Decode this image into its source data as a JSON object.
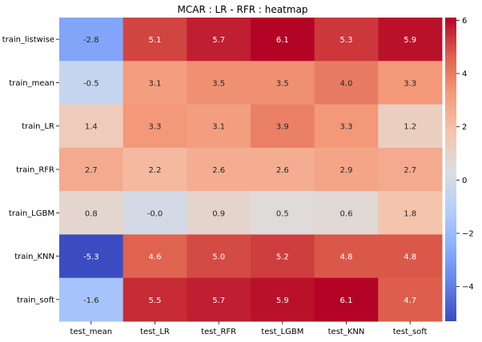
{
  "chart_data": {
    "type": "heatmap",
    "title": "MCAR : LR - RFR : heatmap",
    "xlabel": "",
    "ylabel": "",
    "columns": [
      "test_mean",
      "test_LR",
      "test_RFR",
      "test_LGBM",
      "test_KNN",
      "test_soft"
    ],
    "rows": [
      "train_listwise",
      "train_mean",
      "train_LR",
      "train_RFR",
      "train_LGBM",
      "train_KNN",
      "train_soft"
    ],
    "values": [
      [
        -2.8,
        5.1,
        5.7,
        6.1,
        5.3,
        5.9
      ],
      [
        -0.5,
        3.1,
        3.5,
        3.5,
        4.0,
        3.3
      ],
      [
        1.4,
        3.3,
        3.1,
        3.9,
        3.3,
        1.2
      ],
      [
        2.7,
        2.2,
        2.6,
        2.6,
        2.9,
        2.7
      ],
      [
        0.8,
        -0.0,
        0.9,
        0.5,
        0.6,
        1.8
      ],
      [
        -5.3,
        4.6,
        5.0,
        5.2,
        4.8,
        4.8
      ],
      [
        -1.6,
        5.5,
        5.7,
        5.9,
        6.1,
        4.7
      ]
    ],
    "cell_labels": [
      [
        "-2.8",
        "5.1",
        "5.7",
        "6.1",
        "5.3",
        "5.9"
      ],
      [
        "-0.5",
        "3.1",
        "3.5",
        "3.5",
        "4.0",
        "3.3"
      ],
      [
        "1.4",
        "3.3",
        "3.1",
        "3.9",
        "3.3",
        "1.2"
      ],
      [
        "2.7",
        "2.2",
        "2.6",
        "2.6",
        "2.9",
        "2.7"
      ],
      [
        "0.8",
        "-0.0",
        "0.9",
        "0.5",
        "0.6",
        "1.8"
      ],
      [
        "-5.3",
        "4.6",
        "5.0",
        "5.2",
        "4.8",
        "4.8"
      ],
      [
        "-1.6",
        "5.5",
        "5.7",
        "5.9",
        "6.1",
        "4.7"
      ]
    ],
    "colormap": "coolwarm",
    "vmin": -5.3,
    "vmax": 6.1,
    "colorbar": {
      "ticks": [
        -4,
        -2,
        0,
        2,
        4,
        6
      ],
      "tick_labels": [
        "−4",
        "−2",
        "0",
        "2",
        "4",
        "6"
      ],
      "placement": "right"
    },
    "grid": false
  }
}
